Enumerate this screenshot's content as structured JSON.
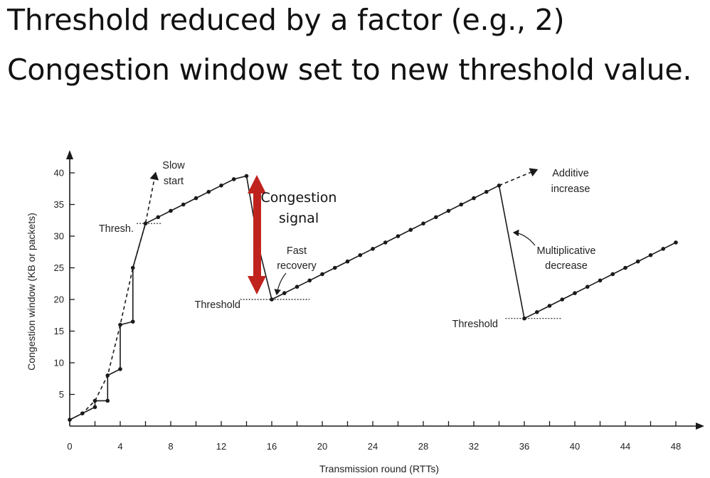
{
  "slide": {
    "line1": "Threshold reduced by a factor (e.g., 2)",
    "line2": "Congestion window set to new threshold value."
  },
  "chart_data": {
    "type": "line",
    "xlabel": "Transmission round (RTTs)",
    "ylabel": "Congestion window  (KB or packets)",
    "xlim": [
      0,
      49
    ],
    "ylim": [
      0,
      42
    ],
    "x_ticks": [
      0,
      4,
      8,
      12,
      16,
      20,
      24,
      28,
      32,
      36,
      40,
      44,
      48
    ],
    "y_ticks": [
      5,
      10,
      15,
      20,
      25,
      30,
      35,
      40
    ],
    "grid": false,
    "series": [
      {
        "style": "solid-with-markers",
        "points": [
          [
            0,
            1
          ],
          [
            1,
            2
          ],
          [
            2,
            3
          ],
          [
            2,
            4
          ],
          [
            3,
            4
          ],
          [
            3,
            8
          ],
          [
            4,
            9
          ],
          [
            4,
            16
          ],
          [
            5,
            16.5
          ],
          [
            5,
            25
          ],
          [
            6,
            32
          ],
          [
            7,
            33
          ],
          [
            8,
            34
          ],
          [
            9,
            35
          ],
          [
            10,
            36
          ],
          [
            11,
            37
          ],
          [
            12,
            38
          ],
          [
            13,
            39
          ],
          [
            14,
            39.5
          ],
          [
            15,
            28
          ],
          [
            16,
            20
          ],
          [
            17,
            21
          ],
          [
            18,
            22
          ],
          [
            19,
            23
          ],
          [
            20,
            24
          ],
          [
            21,
            25
          ],
          [
            22,
            26
          ],
          [
            23,
            27
          ],
          [
            24,
            28
          ],
          [
            25,
            29
          ],
          [
            26,
            30
          ],
          [
            27,
            31
          ],
          [
            28,
            32
          ],
          [
            29,
            33
          ],
          [
            30,
            34
          ],
          [
            31,
            35
          ],
          [
            32,
            36
          ],
          [
            33,
            37
          ],
          [
            34,
            38
          ],
          [
            36,
            17
          ],
          [
            37,
            18
          ],
          [
            38,
            19
          ],
          [
            39,
            20
          ],
          [
            40,
            21
          ],
          [
            41,
            22
          ],
          [
            42,
            23
          ],
          [
            43,
            24
          ],
          [
            44,
            25
          ],
          [
            45,
            26
          ],
          [
            46,
            27
          ],
          [
            47,
            28
          ],
          [
            48,
            29
          ]
        ]
      },
      {
        "style": "dashed",
        "points": [
          [
            0,
            1
          ],
          [
            1,
            2
          ],
          [
            2,
            4
          ],
          [
            3,
            8
          ],
          [
            4,
            16
          ],
          [
            5,
            25
          ],
          [
            6,
            32
          ],
          [
            6.8,
            40
          ]
        ]
      },
      {
        "style": "dashed",
        "points": [
          [
            34,
            38
          ],
          [
            37,
            40.5
          ]
        ]
      }
    ],
    "threshold_lines": [
      {
        "y": 32,
        "x_from": 5.3,
        "x_to": 7.3
      },
      {
        "y": 20,
        "x_from": 13.5,
        "x_to": 19
      },
      {
        "y": 17,
        "x_from": 34.5,
        "x_to": 39
      }
    ],
    "annotations": {
      "slow_start": [
        "Slow",
        "start"
      ],
      "thresh_top": "Thresh.",
      "congestion_signal": [
        "Congestion",
        "signal"
      ],
      "fast_recovery": [
        "Fast",
        "recovery"
      ],
      "threshold_1": "Threshold",
      "additive": [
        "Additive",
        "increase"
      ],
      "multiplicative": [
        "Multiplicative",
        "decrease"
      ],
      "threshold_2": "Threshold"
    },
    "colors": {
      "line": "#1a1a1a",
      "signal_arrow": "#c0231e"
    }
  }
}
